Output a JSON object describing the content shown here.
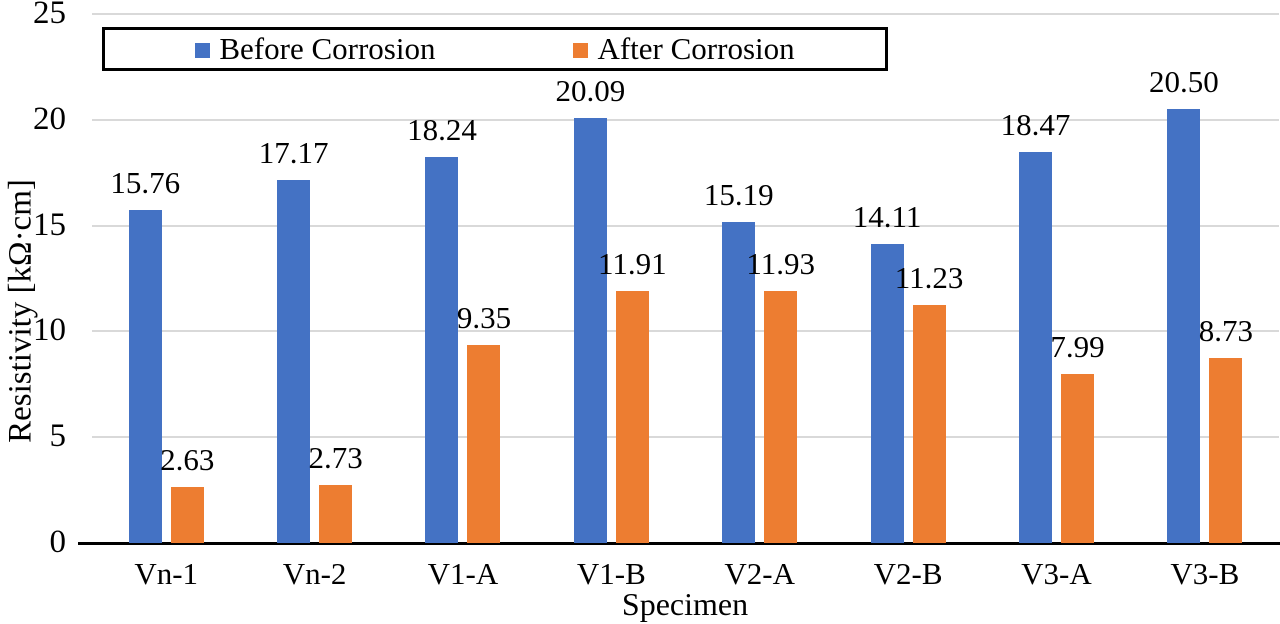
{
  "chart_data": {
    "type": "bar",
    "title": "",
    "xlabel": "Specimen",
    "ylabel": "Resistivity [kΩ·cm]",
    "categories": [
      "Vn-1",
      "Vn-2",
      "V1-A",
      "V1-B",
      "V2-A",
      "V2-B",
      "V3-A",
      "V3-B"
    ],
    "series": [
      {
        "name": "Before Corrosion",
        "color": "#4472C4",
        "values": [
          15.76,
          17.17,
          18.24,
          20.09,
          15.19,
          14.11,
          18.47,
          20.5
        ]
      },
      {
        "name": "After Corrosion",
        "color": "#ED7D31",
        "values": [
          2.63,
          2.73,
          9.35,
          11.91,
          11.93,
          11.23,
          7.99,
          8.73
        ]
      }
    ],
    "ylim": [
      0,
      25
    ],
    "yticks": [
      0,
      5,
      10,
      15,
      20,
      25
    ],
    "grid": true,
    "legend_position": "top-inside",
    "value_label_decimals": 2
  },
  "colors": {
    "gridline": "#D9D9D9",
    "axis": "#000000",
    "text": "#000000",
    "legend_border": "#000000",
    "background": "#FFFFFF"
  }
}
